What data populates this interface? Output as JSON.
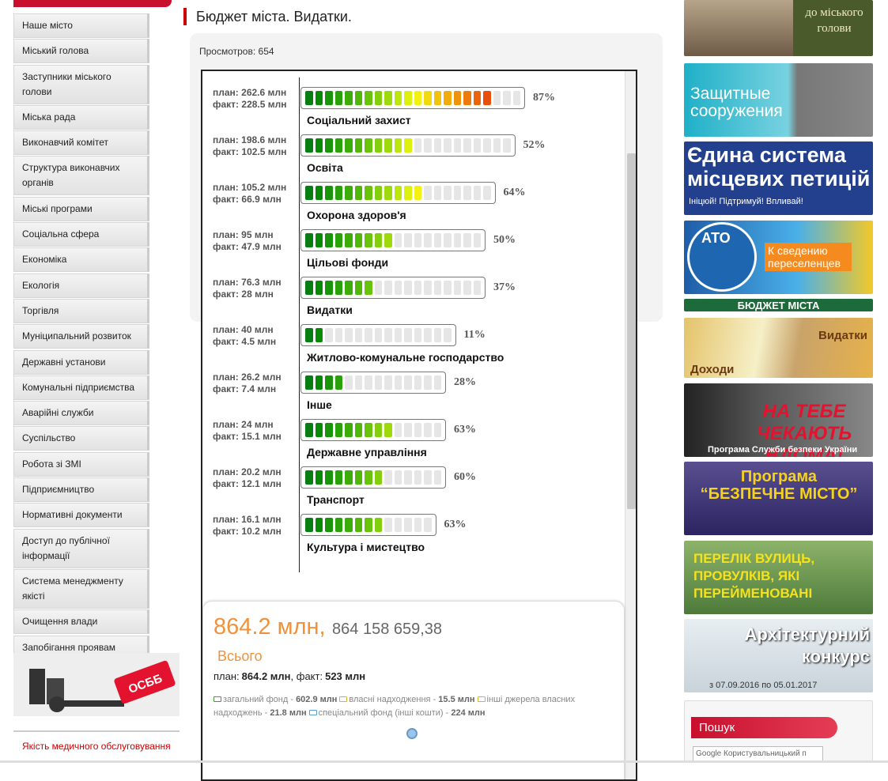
{
  "menu": [
    "Наше місто",
    "Міський голова",
    "Заступники міського голови",
    "Міська рада",
    "Виконавчий комітет",
    "Структура виконавчих органів",
    "Міські програми",
    "Соціальна сфера",
    "Економіка",
    "Екологія",
    "Торгівля",
    "Муніципальний розвиток",
    "Державні установи",
    "Комунальні підприємства",
    "Аварійні служби",
    "Суспільство",
    "Робота зі ЗМІ",
    "Підприємництво",
    "Нормативні документи",
    "Доступ до публічної інформації",
    "Система менеджменту якісті",
    "Очищення влади",
    "Запобігання проявам корупції"
  ],
  "article": {
    "title": "Бюджет міста. Видатки.",
    "views": "Просмотров: 654",
    "plan_prefix": "план:",
    "fact_prefix": "факт:",
    "items": [
      {
        "name": "Соціальний захист",
        "plan": "262.6 млн",
        "fact": "228.5 млн",
        "percent": "87%"
      },
      {
        "name": "Освіта",
        "plan": "198.6 млн",
        "fact": "102.5 млн",
        "percent": "52%"
      },
      {
        "name": "Охорона здоров'я",
        "plan": "105.2 млн",
        "fact": "66.9 млн",
        "percent": "64%"
      },
      {
        "name": "Цільові фонди",
        "plan": "95 млн",
        "fact": "47.9 млн",
        "percent": "50%"
      },
      {
        "name": "Видатки",
        "plan": "76.3 млн",
        "fact": "28 млн",
        "percent": "37%"
      },
      {
        "name": "Житлово-комунальне господарство",
        "plan": "40 млн",
        "fact": "4.5 млн",
        "percent": "11%"
      },
      {
        "name": "Інше",
        "plan": "26.2 млн",
        "fact": "7.4 млн",
        "percent": "28%"
      },
      {
        "name": "Державне управління",
        "plan": "24 млн",
        "fact": "15.1 млн",
        "percent": "63%"
      },
      {
        "name": "Транспорт",
        "plan": "20.2 млн",
        "fact": "12.1 млн",
        "percent": "60%"
      },
      {
        "name": "Культура і мистецтво",
        "plan": "16.1 млн",
        "fact": "10.2 млн",
        "percent": "63%"
      }
    ],
    "total": {
      "amount": "864.2 млн,",
      "exact": "864 158 659,38",
      "label": "Всього",
      "plan_line": [
        "план:",
        "864.2 млн",
        ", факт:",
        "523 млн"
      ],
      "funds": [
        {
          "name": "загальний фонд -",
          "amount": "602.9 млн"
        },
        {
          "name": "власні надходження -",
          "amount": "15.5 млн"
        },
        {
          "name": "інші джерела власних надходжень -",
          "amount": "21.8 млн"
        },
        {
          "name": "спеціальний фонд (інші кошти) -",
          "amount": "224 млн"
        }
      ]
    }
  },
  "left_banners": {
    "osbb": "ОСББ",
    "medical": "Якість медичного обслуговування"
  },
  "right_banners": {
    "mayor": "до міського голови",
    "shelters": "Защитные сооружения",
    "petitions": "Єдина система місцевих петицій",
    "petitions_sub": "Ініцюй! Підтримуй! Впливай!",
    "ato": "АТО",
    "ato_sub": "К сведению переселенцев",
    "budget_title": "БЮДЖЕТ МІСТА",
    "expenses": "Видатки",
    "income": "Доходи",
    "home": "НА ТЕБЕ ЧЕКАЮТЬ ВДОМА!",
    "home_sub": "Програма Служби безпеки України",
    "safe_city": "Програма “БЕЗПЕЧНЕ МІСТО”",
    "streets": "ПЕРЕЛІК ВУЛИЦЬ, ПРОВУЛКІВ, ЯКІ ПЕРЕЙМЕНОВАНІ",
    "arch": "Архітектурний конкурс",
    "arch_dates": "з 07.09.2016 по 05.01.2017"
  },
  "search": {
    "title": "Пошук",
    "google": "Google",
    "placeholder": "Користувальницький п"
  }
}
